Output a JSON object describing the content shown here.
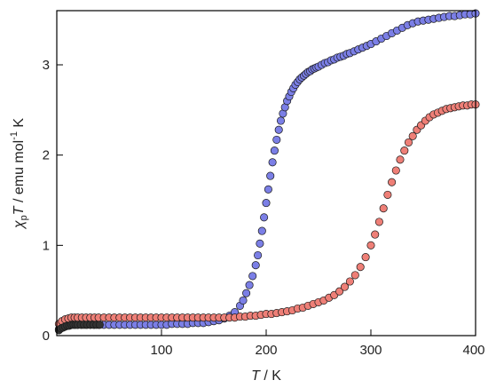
{
  "chart_data": {
    "type": "scatter",
    "xlabel": {
      "italic": "T",
      "rest": " / K"
    },
    "ylabel": {
      "chi": "χ",
      "sub": "p",
      "italic": "T",
      "rest": " / emu mol",
      "sup": "-1",
      "tail": " K"
    },
    "xlim": [
      0,
      400
    ],
    "ylim": [
      0,
      3.6
    ],
    "x_ticks": [
      100,
      200,
      300,
      400
    ],
    "y_ticks": [
      0,
      1,
      2,
      3
    ],
    "grid": false,
    "series": [
      {
        "color": "#7b7fe6",
        "x": [
          2,
          5,
          8,
          11,
          14,
          17,
          20,
          24,
          28,
          32,
          36,
          40,
          45,
          50,
          55,
          60,
          65,
          70,
          75,
          80,
          85,
          90,
          95,
          100,
          105,
          110,
          115,
          120,
          125,
          130,
          135,
          140,
          145,
          150,
          155,
          160,
          165,
          170,
          175,
          178,
          181,
          184,
          187,
          190,
          192,
          194,
          196,
          198,
          200,
          202,
          204,
          206,
          208,
          210,
          212,
          214,
          216,
          218,
          220,
          222,
          224,
          226,
          228,
          230,
          232,
          234,
          236,
          238,
          240,
          242,
          244,
          246,
          248,
          250,
          253,
          256,
          259,
          262,
          265,
          268,
          271,
          274,
          277,
          280,
          284,
          288,
          292,
          296,
          300,
          305,
          310,
          315,
          320,
          325,
          330,
          335,
          340,
          345,
          350,
          355,
          360,
          365,
          370,
          375,
          380,
          385,
          390,
          395,
          400
        ],
        "y": [
          0.07,
          0.09,
          0.1,
          0.11,
          0.12,
          0.12,
          0.12,
          0.12,
          0.12,
          0.12,
          0.12,
          0.12,
          0.12,
          0.12,
          0.12,
          0.12,
          0.12,
          0.12,
          0.12,
          0.12,
          0.12,
          0.12,
          0.12,
          0.12,
          0.12,
          0.13,
          0.13,
          0.13,
          0.13,
          0.14,
          0.14,
          0.14,
          0.15,
          0.16,
          0.17,
          0.19,
          0.22,
          0.26,
          0.33,
          0.39,
          0.47,
          0.56,
          0.66,
          0.78,
          0.89,
          1.02,
          1.16,
          1.31,
          1.47,
          1.62,
          1.77,
          1.92,
          2.05,
          2.17,
          2.28,
          2.38,
          2.46,
          2.53,
          2.6,
          2.65,
          2.7,
          2.74,
          2.78,
          2.81,
          2.84,
          2.86,
          2.88,
          2.9,
          2.92,
          2.93,
          2.95,
          2.96,
          2.97,
          2.98,
          3.0,
          3.02,
          3.03,
          3.05,
          3.06,
          3.08,
          3.09,
          3.1,
          3.12,
          3.13,
          3.15,
          3.17,
          3.19,
          3.21,
          3.23,
          3.26,
          3.29,
          3.32,
          3.35,
          3.38,
          3.41,
          3.44,
          3.46,
          3.48,
          3.49,
          3.5,
          3.51,
          3.52,
          3.53,
          3.54,
          3.54,
          3.55,
          3.56,
          3.56,
          3.57
        ]
      },
      {
        "color": "#ee7f77",
        "x": [
          2,
          5,
          8,
          11,
          14,
          17,
          20,
          24,
          28,
          32,
          36,
          40,
          45,
          50,
          55,
          60,
          65,
          70,
          75,
          80,
          85,
          90,
          95,
          100,
          105,
          110,
          115,
          120,
          125,
          130,
          135,
          140,
          145,
          150,
          155,
          160,
          165,
          170,
          175,
          180,
          185,
          190,
          195,
          200,
          205,
          210,
          215,
          220,
          225,
          230,
          235,
          240,
          245,
          250,
          255,
          260,
          265,
          270,
          275,
          280,
          285,
          290,
          295,
          300,
          304,
          308,
          312,
          316,
          320,
          324,
          328,
          332,
          336,
          340,
          344,
          348,
          352,
          356,
          360,
          364,
          368,
          372,
          376,
          380,
          384,
          388,
          392,
          396,
          400
        ],
        "y": [
          0.13,
          0.16,
          0.18,
          0.19,
          0.2,
          0.2,
          0.2,
          0.2,
          0.2,
          0.2,
          0.2,
          0.2,
          0.2,
          0.2,
          0.2,
          0.2,
          0.2,
          0.2,
          0.2,
          0.2,
          0.2,
          0.2,
          0.2,
          0.2,
          0.2,
          0.2,
          0.2,
          0.2,
          0.2,
          0.2,
          0.2,
          0.2,
          0.2,
          0.2,
          0.2,
          0.2,
          0.2,
          0.2,
          0.21,
          0.21,
          0.22,
          0.22,
          0.23,
          0.24,
          0.24,
          0.25,
          0.26,
          0.27,
          0.28,
          0.3,
          0.31,
          0.33,
          0.35,
          0.37,
          0.39,
          0.42,
          0.45,
          0.49,
          0.54,
          0.6,
          0.67,
          0.76,
          0.87,
          1.0,
          1.12,
          1.26,
          1.41,
          1.56,
          1.7,
          1.83,
          1.95,
          2.05,
          2.14,
          2.21,
          2.28,
          2.33,
          2.38,
          2.42,
          2.45,
          2.47,
          2.49,
          2.51,
          2.52,
          2.53,
          2.54,
          2.55,
          2.55,
          2.56,
          2.56
        ]
      },
      {
        "color": "#333333",
        "x": [
          2,
          4,
          6,
          8,
          10,
          12,
          14,
          16,
          18,
          20,
          23,
          26,
          29,
          32,
          35,
          38,
          41
        ],
        "y": [
          0.06,
          0.08,
          0.09,
          0.1,
          0.11,
          0.11,
          0.12,
          0.12,
          0.12,
          0.12,
          0.12,
          0.12,
          0.12,
          0.12,
          0.12,
          0.12,
          0.12
        ]
      }
    ]
  }
}
